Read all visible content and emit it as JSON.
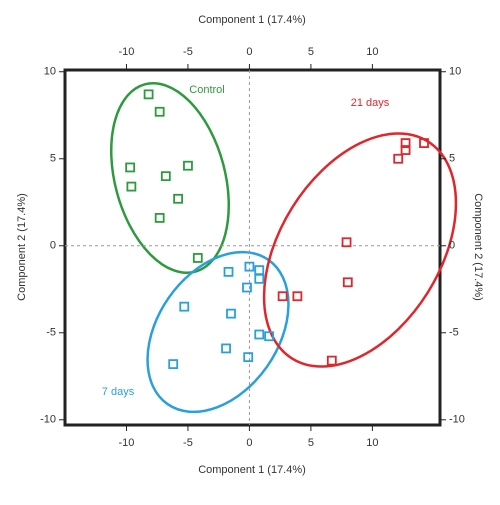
{
  "chart_data": {
    "type": "scatter",
    "xlabel": "Component 1 (17.4%)",
    "ylabel": "Component 2 (17.4%)",
    "xlim": [
      -15,
      15.5
    ],
    "xticks": [
      -10,
      -5,
      0,
      5,
      10
    ],
    "ylim": [
      -10.3,
      10.1
    ],
    "yticks": [
      -10,
      -5,
      0,
      5,
      10
    ],
    "series": [
      {
        "name": "Control",
        "color": "#2e9a3e",
        "x": [
          -8.2,
          -7.3,
          -9.7,
          -9.6,
          -6.8,
          -5.0,
          -5.8,
          -7.3,
          -4.2
        ],
        "values": [
          8.7,
          7.7,
          4.5,
          3.4,
          4.0,
          4.6,
          2.7,
          1.6,
          -0.7
        ]
      },
      {
        "name": "7 days",
        "color": "#29a0dc",
        "x": [
          -5.3,
          -1.7,
          0,
          0.8,
          0.8,
          -0.2,
          -1.5,
          -1.9,
          -0.1,
          0.8,
          1.6,
          -6.2
        ],
        "values": [
          -3.5,
          -1.5,
          -1.2,
          -1.4,
          -1.9,
          -2.4,
          -3.9,
          -5.9,
          -6.4,
          -5.1,
          -5.2,
          -6.8
        ]
      },
      {
        "name": "21 days",
        "color": "#e0262b",
        "x": [
          2.7,
          3.9,
          7.9,
          8.0,
          6.7,
          12.1,
          12.7,
          12.7,
          14.2
        ],
        "values": [
          -2.9,
          -2.9,
          0.2,
          -2.1,
          -6.6,
          5.0,
          5.9,
          5.5,
          5.9
        ]
      }
    ]
  }
}
